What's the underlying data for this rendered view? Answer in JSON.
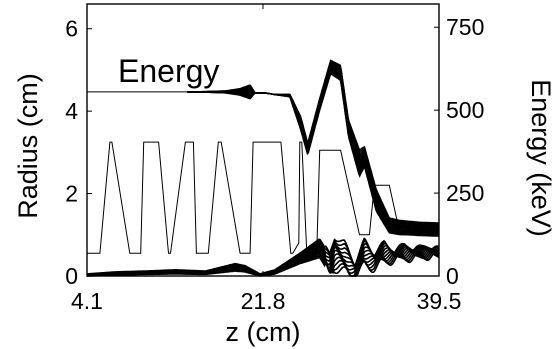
{
  "chart_data": {
    "type": "line",
    "title": "",
    "xlabel": "z (cm)",
    "ylabel_left": "Radius (cm)",
    "ylabel_right": "Energy (keV)",
    "annotation": "Energy",
    "xlim": [
      4.1,
      39.5
    ],
    "ylim_left": [
      0,
      6.6
    ],
    "ylim_right": [
      0,
      820
    ],
    "x_ticks": [
      4.1,
      21.8,
      39.5
    ],
    "x_tick_labels": [
      "4.1",
      "21.8",
      "39.5"
    ],
    "y_left_ticks": [
      0,
      2,
      4,
      6
    ],
    "y_left_tick_labels": [
      "0",
      "2",
      "4",
      "6"
    ],
    "y_right_ticks": [
      0,
      250,
      500,
      750
    ],
    "y_right_tick_labels": [
      "0",
      "250",
      "500",
      "750"
    ],
    "grid": false,
    "series": [
      {
        "kind": "electrode_profile",
        "x": [
          4.1,
          5.4,
          6.4,
          6.6,
          8.4,
          9.5,
          9.8,
          11.3,
          12.3,
          12.5,
          14.0,
          14.8,
          15.1,
          16.3,
          17.3,
          17.6,
          19.5,
          20.5,
          20.8,
          23.6,
          24.6,
          24.8,
          25.4,
          25.5,
          25.7,
          26.2,
          27.2,
          27.5,
          29.6,
          31.5,
          32.5,
          33.0,
          34.5,
          35.6,
          35.9,
          37.2,
          39.5
        ],
        "y": [
          0.55,
          0.55,
          3.25,
          3.25,
          0.55,
          0.55,
          3.25,
          3.25,
          0.55,
          0.55,
          3.25,
          3.25,
          0.55,
          0.55,
          3.25,
          3.25,
          0.55,
          0.55,
          3.25,
          3.25,
          0.55,
          0.55,
          0.8,
          3.25,
          3.25,
          0.55,
          0.55,
          3.05,
          3.05,
          1.0,
          1.0,
          2.2,
          2.2,
          1.0,
          1.0,
          1.0,
          1.0
        ]
      },
      {
        "kind": "energy_envelope_upper_keV",
        "x": [
          4.1,
          14.2,
          16.0,
          18.0,
          19.5,
          20.5,
          21.0,
          22.0,
          23.0,
          24.5,
          25.6,
          26.3,
          27.5,
          28.6,
          29.6,
          30.4,
          31.5,
          32.0,
          33.2,
          34.5,
          35.5,
          36.5,
          37.5,
          39.5
        ],
        "y": [
          555,
          555,
          556,
          558,
          565,
          576,
          552,
          552,
          547,
          548,
          480,
          400,
          535,
          650,
          635,
          470,
          380,
          390,
          260,
          175,
          168,
          165,
          162,
          160
        ]
      },
      {
        "kind": "energy_envelope_lower_keV",
        "x": [
          14.2,
          16.0,
          18.0,
          19.5,
          20.5,
          21.0,
          22.0,
          23.0,
          24.5,
          25.6,
          26.3,
          27.5,
          28.6,
          29.6,
          30.4,
          31.5,
          32.0,
          33.2,
          34.5,
          35.5,
          36.5,
          37.5,
          39.5
        ],
        "y": [
          555,
          554,
          552,
          545,
          534,
          552,
          552,
          547,
          540,
          440,
          365,
          500,
          610,
          590,
          420,
          300,
          330,
          195,
          130,
          125,
          124,
          122,
          120
        ]
      },
      {
        "kind": "radius_envelope_upper_cm",
        "x": [
          4.1,
          7.0,
          10.0,
          13.0,
          16.0,
          19.0,
          20.0,
          21.5,
          23.0,
          25.5,
          27.5,
          28.5,
          29.0,
          30.0,
          31.0,
          32.0,
          33.0,
          34.0,
          35.0,
          36.0,
          37.0,
          38.0,
          39.5
        ],
        "y": [
          0.05,
          0.1,
          0.12,
          0.15,
          0.12,
          0.3,
          0.25,
          0.05,
          0.15,
          0.55,
          0.9,
          0.5,
          0.95,
          0.8,
          0.3,
          0.85,
          0.55,
          0.8,
          0.6,
          0.75,
          0.65,
          0.7,
          0.65
        ]
      },
      {
        "kind": "radius_envelope_lower_cm",
        "x": [
          4.1,
          7.0,
          10.0,
          13.0,
          16.0,
          19.0,
          20.0,
          21.5,
          23.0,
          25.5,
          27.5,
          28.5,
          29.0,
          30.0,
          31.0,
          32.0,
          33.0,
          34.0,
          35.0,
          36.0,
          37.0,
          38.0,
          39.5
        ],
        "y": [
          0.0,
          0.02,
          0.04,
          0.05,
          0.04,
          0.12,
          0.1,
          0.0,
          0.05,
          0.3,
          0.45,
          0.05,
          0.2,
          0.1,
          0.0,
          0.25,
          0.2,
          0.35,
          0.4,
          0.45,
          0.45,
          0.5,
          0.5
        ]
      }
    ]
  }
}
